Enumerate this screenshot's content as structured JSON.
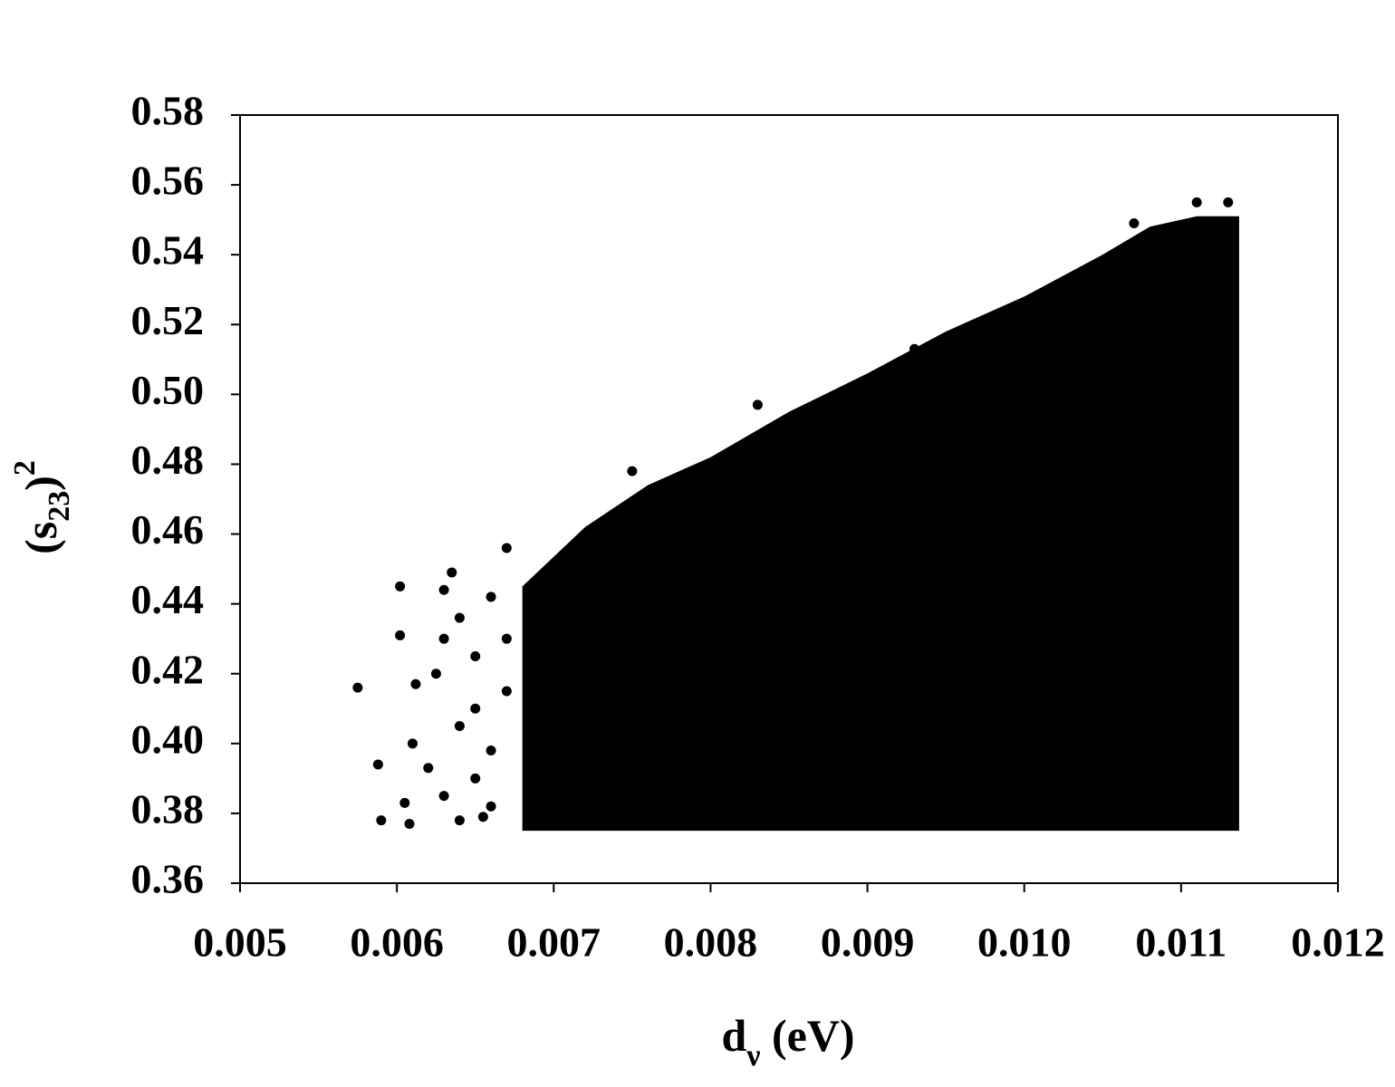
{
  "chart_data": {
    "type": "scatter",
    "xlabel": [
      "d",
      "ν",
      " (eV)"
    ],
    "ylabel": [
      "(s",
      "23",
      ")",
      "2"
    ],
    "color": "#000000",
    "xlim": [
      0.005,
      0.012
    ],
    "xticks": [
      0.005,
      0.006,
      0.007,
      0.008,
      0.009,
      {
        "value": 0.01,
        "label": "0.010"
      },
      0.011,
      0.012
    ],
    "ylim": [
      0.36,
      0.58
    ],
    "yticks": [
      0.36,
      0.38,
      {
        "value": 0.4,
        "label": "0.40"
      },
      0.42,
      0.44,
      0.46,
      0.48,
      {
        "value": 0.5,
        "label": "0.50"
      },
      0.52,
      0.54,
      0.56,
      0.58
    ],
    "dense_region": {
      "x": [
        0.0068,
        0.0068,
        0.0072,
        0.0076,
        0.008,
        0.0085,
        0.009,
        0.0095,
        0.01,
        0.0105,
        0.0108,
        0.0111,
        0.01137,
        0.01137
      ],
      "y": [
        0.375,
        0.445,
        0.462,
        0.474,
        0.482,
        0.495,
        0.506,
        0.518,
        0.528,
        0.54,
        0.548,
        0.551,
        0.551,
        0.375
      ]
    },
    "series": [
      {
        "x": [
          0.00575,
          0.00588,
          0.0059,
          0.00602,
          0.00602,
          0.00605,
          0.0061,
          0.00608,
          0.00612,
          0.0062,
          0.0063,
          0.00635,
          0.0064,
          0.00625,
          0.0063,
          0.0064,
          0.0065,
          0.0063,
          0.0064,
          0.0066,
          0.0066,
          0.0065,
          0.0066,
          0.0067,
          0.0065,
          0.00655,
          0.0067,
          0.0067,
          0.0075,
          0.0083,
          0.0093,
          0.0111,
          0.0113,
          0.0107
        ],
        "y": [
          0.416,
          0.394,
          0.378,
          0.445,
          0.431,
          0.383,
          0.4,
          0.377,
          0.417,
          0.393,
          0.444,
          0.449,
          0.436,
          0.42,
          0.43,
          0.405,
          0.41,
          0.385,
          0.378,
          0.382,
          0.398,
          0.425,
          0.442,
          0.456,
          0.39,
          0.379,
          0.415,
          0.43,
          0.478,
          0.497,
          0.513,
          0.555,
          0.555,
          0.549
        ]
      }
    ]
  }
}
